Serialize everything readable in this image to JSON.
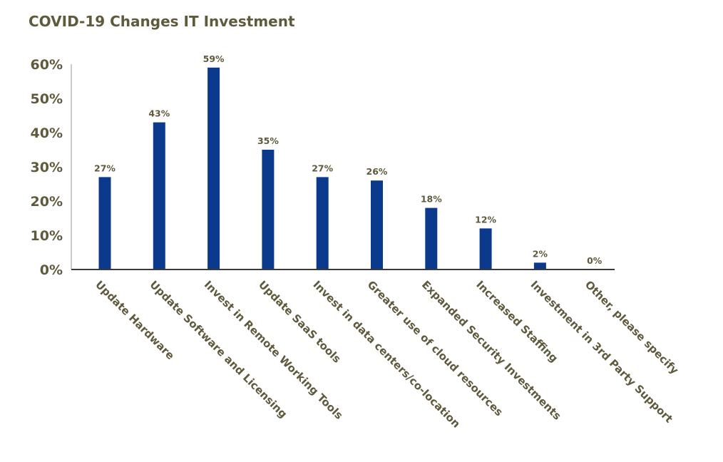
{
  "chart_data": {
    "type": "bar",
    "title": "COVID-19 Changes IT Investment",
    "xlabel": "",
    "ylabel": "",
    "categories": [
      "Update Hardware",
      "Update Software and Licensing",
      "Invest in Remote Working Tools",
      "Update SaaS tools",
      "Invest in data centers/co-location",
      "Greater use of cloud resources",
      "Expanded Security Investments",
      "Increased Staffing",
      "Investment in 3rd Party Support",
      "Other, please specify"
    ],
    "values": [
      27,
      43,
      59,
      35,
      27,
      26,
      18,
      12,
      2,
      0
    ],
    "data_labels": [
      "27%",
      "43%",
      "59%",
      "35%",
      "27%",
      "26%",
      "18%",
      "12%",
      "2%",
      "0%"
    ],
    "ylim": [
      0,
      60
    ],
    "yticks": [
      0,
      10,
      20,
      30,
      40,
      50,
      60
    ],
    "ytick_labels": [
      "0%",
      "10%",
      "20%",
      "30%",
      "40%",
      "50%",
      "60%"
    ],
    "grid": false,
    "legend": "none",
    "bar_color": "#0b3a8c",
    "text_color": "#5f5a3c"
  }
}
